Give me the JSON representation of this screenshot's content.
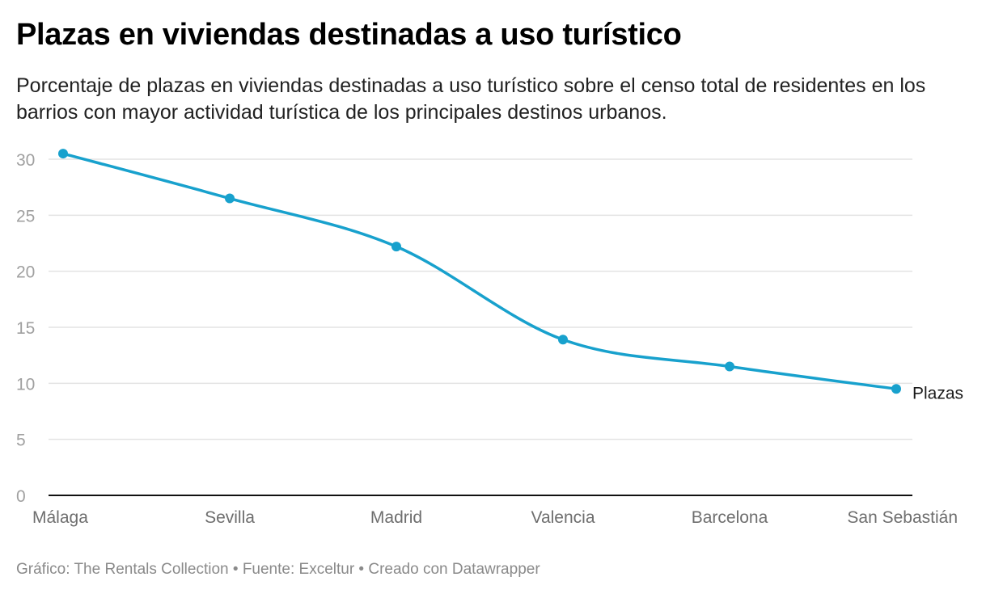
{
  "header": {
    "title": "Plazas en viviendas destinadas a uso turístico",
    "subtitle": "Porcentaje de plazas en viviendas destinadas a uso turístico sobre el censo total de residentes en los barrios con mayor actividad turística de los principales destinos urbanos."
  },
  "footer": {
    "text": "Gráfico: The Rentals Collection • Fuente: Exceltur • Creado con Datawrapper"
  },
  "colors": {
    "series": "#18a1cd",
    "grid": "#e3e3e3",
    "axis": "#111111"
  },
  "chart_data": {
    "type": "line",
    "title": "Plazas en viviendas destinadas a uso turístico",
    "xlabel": "",
    "ylabel": "",
    "categories": [
      "Málaga",
      "Sevilla",
      "Madrid",
      "Valencia",
      "Barcelona",
      "San Sebastián"
    ],
    "series": [
      {
        "name": "Plazas",
        "values": [
          30.5,
          26.5,
          22.2,
          13.9,
          11.5,
          9.5
        ]
      }
    ],
    "yticks": [
      0,
      5,
      10,
      15,
      20,
      25,
      30
    ],
    "ylim": [
      0,
      30
    ],
    "grid": true,
    "legend": "direct label at line end (right)"
  }
}
